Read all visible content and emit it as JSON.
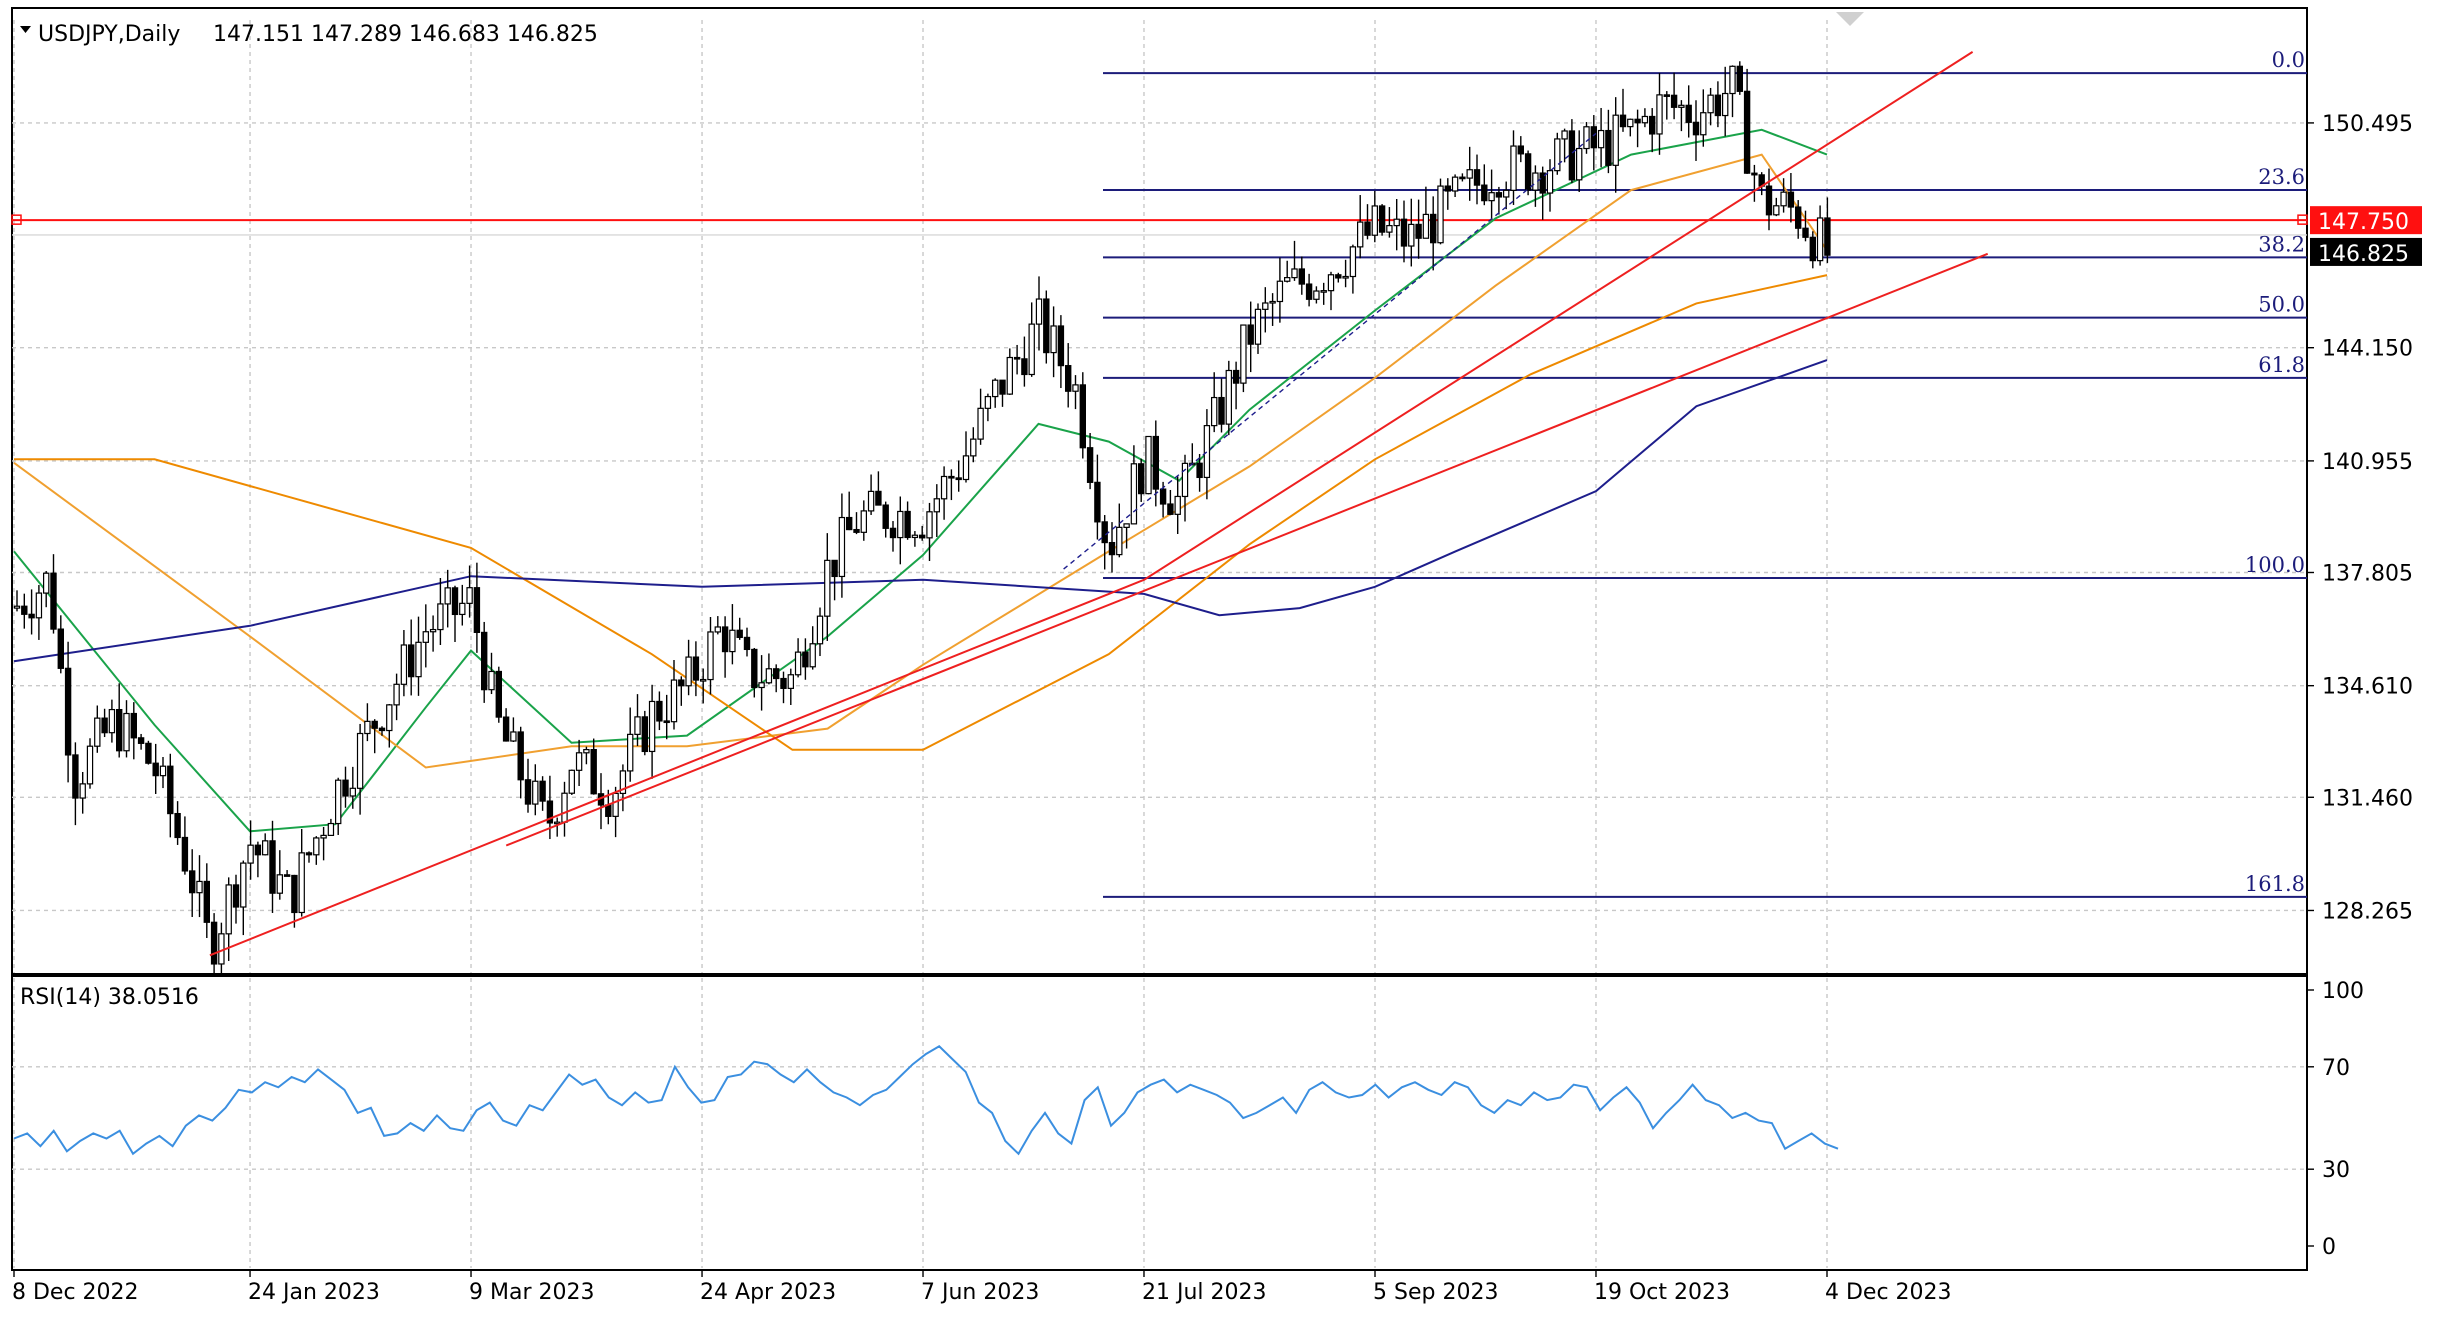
{
  "header": {
    "symbol_label": "USDJPY,Daily",
    "ohlc_label": "147.151 147.289 146.683 146.825"
  },
  "rsi_header": {
    "label": "RSI(14) 38.0516"
  },
  "price_badges": {
    "hline_price": "147.750",
    "last_price": "146.825"
  },
  "colors": {
    "candle": "#000000",
    "grid": "#c8c8c8",
    "fib": "#1c1c7a",
    "ma_fast": "#1aa34a",
    "ma_mid": "#f0a030",
    "ma_slow": "#1e1e8c",
    "trend": "#ee2020",
    "rsi": "#3b8fe0",
    "badge_red": "#ff1010",
    "badge_black": "#000000"
  },
  "chart_data": [
    {
      "type": "candlestick",
      "title": "USDJPY,Daily",
      "x_tick_labels": [
        "8 Dec 2022",
        "24 Jan 2023",
        "9 Mar 2023",
        "24 Apr 2023",
        "7 Jun 2023",
        "21 Jul 2023",
        "5 Sep 2023",
        "19 Oct 2023",
        "4 Dec 2023"
      ],
      "y_tick_labels": [
        "150.495",
        "144.150",
        "140.955",
        "137.805",
        "134.610",
        "131.460",
        "128.265"
      ],
      "ylim": [
        126.5,
        153.4
      ],
      "grid": true,
      "path_points": [
        [
          "8 Dec 2022",
          136.8
        ],
        [
          "15 Dec 2022",
          137.6
        ],
        [
          "20 Dec 2022",
          132.0
        ],
        [
          "28 Dec 2022",
          133.6
        ],
        [
          "5 Jan 2023",
          132.3
        ],
        [
          "12 Jan 2023",
          129.4
        ],
        [
          "16 Jan 2023",
          127.2
        ],
        [
          "24 Jan 2023",
          130.2
        ],
        [
          "1 Feb 2023",
          128.6
        ],
        [
          "10 Feb 2023",
          131.6
        ],
        [
          "20 Feb 2023",
          134.2
        ],
        [
          "28 Feb 2023",
          136.2
        ],
        [
          "9 Mar 2023",
          137.0
        ],
        [
          "14 Mar 2023",
          133.6
        ],
        [
          "24 Mar 2023",
          130.6
        ],
        [
          "29 Mar 2023",
          132.5
        ],
        [
          "6 Apr 2023",
          131.6
        ],
        [
          "14 Apr 2023",
          133.8
        ],
        [
          "21 Apr 2023",
          134.6
        ],
        [
          "28 Apr 2023",
          136.3
        ],
        [
          "3 May 2023",
          135.0
        ],
        [
          "12 May 2023",
          134.8
        ],
        [
          "19 May 2023",
          137.9
        ],
        [
          "25 May 2023",
          139.3
        ],
        [
          "1 Jun 2023",
          139.5
        ],
        [
          "7 Jun 2023",
          139.4
        ],
        [
          "15 Jun 2023",
          141.0
        ],
        [
          "22 Jun 2023",
          143.0
        ],
        [
          "30 Jun 2023",
          144.8
        ],
        [
          "7 Jul 2023",
          143.2
        ],
        [
          "14 Jul 2023",
          138.5
        ],
        [
          "21 Jul 2023",
          141.0
        ],
        [
          "28 Jul 2023",
          139.8
        ],
        [
          "4 Aug 2023",
          142.0
        ],
        [
          "11 Aug 2023",
          144.5
        ],
        [
          "18 Aug 2023",
          145.8
        ],
        [
          "25 Aug 2023",
          146.2
        ],
        [
          "5 Sep 2023",
          147.5
        ],
        [
          "12 Sep 2023",
          147.2
        ],
        [
          "21 Sep 2023",
          148.3
        ],
        [
          "29 Sep 2023",
          149.2
        ],
        [
          "6 Oct 2023",
          149.2
        ],
        [
          "19 Oct 2023",
          149.8
        ],
        [
          "26 Oct 2023",
          150.2
        ],
        [
          "1 Nov 2023",
          151.0
        ],
        [
          "8 Nov 2023",
          150.8
        ],
        [
          "15 Nov 2023",
          151.5
        ],
        [
          "21 Nov 2023",
          148.3
        ],
        [
          "28 Nov 2023",
          148.0
        ],
        [
          "4 Dec 2023",
          146.8
        ]
      ],
      "moving_averages": [
        {
          "color": "#1aa34a",
          "points": [
            [
              "8 Dec 2022",
              138.4
            ],
            [
              "5 Jan 2023",
              133.5
            ],
            [
              "24 Jan 2023",
              130.5
            ],
            [
              "10 Feb 2023",
              130.7
            ],
            [
              "28 Feb 2023",
              134.0
            ],
            [
              "9 Mar 2023",
              135.6
            ],
            [
              "29 Mar 2023",
              133.0
            ],
            [
              "21 Apr 2023",
              133.2
            ],
            [
              "19 May 2023",
              136.0
            ],
            [
              "7 Jun 2023",
              138.3
            ],
            [
              "30 Jun 2023",
              142.0
            ],
            [
              "14 Jul 2023",
              141.5
            ],
            [
              "28 Jul 2023",
              140.4
            ],
            [
              "11 Aug 2023",
              142.4
            ],
            [
              "5 Sep 2023",
              145.2
            ],
            [
              "29 Sep 2023",
              147.8
            ],
            [
              "26 Oct 2023",
              149.6
            ],
            [
              "21 Nov 2023",
              150.3
            ],
            [
              "4 Dec 2023",
              149.6
            ]
          ]
        },
        {
          "color": "#f0a030",
          "points": [
            [
              "8 Dec 2022",
              140.9
            ],
            [
              "24 Jan 2023",
              136.0
            ],
            [
              "28 Feb 2023",
              132.3
            ],
            [
              "29 Mar 2023",
              132.9
            ],
            [
              "21 Apr 2023",
              132.9
            ],
            [
              "19 May 2023",
              133.4
            ],
            [
              "7 Jun 2023",
              135.2
            ],
            [
              "14 Jul 2023",
              138.4
            ],
            [
              "11 Aug 2023",
              140.8
            ],
            [
              "5 Sep 2023",
              143.3
            ],
            [
              "29 Sep 2023",
              145.9
            ],
            [
              "26 Oct 2023",
              148.6
            ],
            [
              "21 Nov 2023",
              149.6
            ],
            [
              "4 Dec 2023",
              146.9
            ]
          ]
        },
        {
          "color": "#ee8a00",
          "points": [
            [
              "8 Dec 2022",
              141.0
            ],
            [
              "5 Jan 2023",
              141.0
            ],
            [
              "9 Mar 2023",
              138.5
            ],
            [
              "14 Apr 2023",
              135.5
            ],
            [
              "12 May 2023",
              132.8
            ],
            [
              "7 Jun 2023",
              132.8
            ],
            [
              "14 Jul 2023",
              135.5
            ],
            [
              "11 Aug 2023",
              138.6
            ],
            [
              "5 Sep 2023",
              141.0
            ],
            [
              "6 Oct 2023",
              143.4
            ],
            [
              "8 Nov 2023",
              145.4
            ],
            [
              "4 Dec 2023",
              146.2
            ]
          ]
        },
        {
          "color": "#1e1e8c",
          "points": [
            [
              "8 Dec 2022",
              135.3
            ],
            [
              "24 Jan 2023",
              136.3
            ],
            [
              "9 Mar 2023",
              137.7
            ],
            [
              "24 Apr 2023",
              137.4
            ],
            [
              "7 Jun 2023",
              137.6
            ],
            [
              "21 Jul 2023",
              137.2
            ],
            [
              "5 Aug 2023",
              136.6
            ],
            [
              "21 Aug 2023",
              136.8
            ],
            [
              "5 Sep 2023",
              137.4
            ],
            [
              "21 Sep 2023",
              138.4
            ],
            [
              "19 Oct 2023",
              140.1
            ],
            [
              "8 Nov 2023",
              142.5
            ],
            [
              "4 Dec 2023",
              143.8
            ]
          ]
        }
      ],
      "fibonacci": {
        "levels": [
          {
            "label": "0.0",
            "price": 151.9
          },
          {
            "label": "23.6",
            "price": 148.6
          },
          {
            "label": "38.2",
            "price": 146.7
          },
          {
            "label": "50.0",
            "price": 145.0
          },
          {
            "label": "61.8",
            "price": 143.3
          },
          {
            "label": "100.0",
            "price": 137.65
          },
          {
            "label": "161.8",
            "price": 128.65
          }
        ]
      },
      "horizontal_line": {
        "price": 147.75
      },
      "trendlines": [
        {
          "points": [
            [
              "16 Jan 2023",
              127.0
            ],
            [
              "21 Jul 2023",
              137.6
            ],
            [
              "2 Jan 2024",
              152.5
            ]
          ]
        },
        {
          "points": [
            [
              "16 Mar 2023",
              130.1
            ],
            [
              "5 Jan 2024",
              146.8
            ]
          ]
        },
        {
          "points": [
            [
              "5 Jul 2023",
              137.9
            ],
            [
              "19 Oct 2023",
              150.2
            ]
          ],
          "style": "dashed"
        }
      ]
    },
    {
      "type": "line",
      "title": "RSI(14) 38.0516",
      "y_tick_labels": [
        "100",
        "70",
        "30",
        "0"
      ],
      "ylim": [
        0,
        100
      ],
      "series": [
        {
          "values": [
            42,
            44,
            39,
            45,
            37,
            41,
            44,
            42,
            45,
            36,
            40,
            43,
            39,
            47,
            51,
            49,
            54,
            61,
            60,
            64,
            62,
            66,
            64,
            69,
            65,
            61,
            52,
            54,
            43,
            44,
            48,
            45,
            51,
            46,
            45,
            53,
            56,
            49,
            47,
            55,
            53,
            60,
            67,
            63,
            65,
            58,
            55,
            60,
            56,
            57,
            70,
            62,
            56,
            57,
            66,
            67,
            72,
            71,
            67,
            64,
            69,
            64,
            60,
            58,
            55,
            59,
            61,
            66,
            71,
            75,
            78,
            73,
            68,
            56,
            52,
            41,
            36,
            45,
            52,
            44,
            40,
            57,
            62,
            47,
            52,
            60,
            63,
            65,
            60,
            63,
            61,
            59,
            56,
            50,
            52,
            55,
            58,
            52,
            61,
            64,
            60,
            58,
            59,
            63,
            58,
            62,
            64,
            61,
            59,
            64,
            62,
            55,
            52,
            57,
            55,
            60,
            57,
            58,
            63,
            62,
            53,
            58,
            62,
            56,
            46,
            52,
            57,
            63,
            57,
            55,
            50,
            52,
            49,
            48,
            38,
            41,
            44,
            40,
            38
          ]
        }
      ]
    }
  ]
}
